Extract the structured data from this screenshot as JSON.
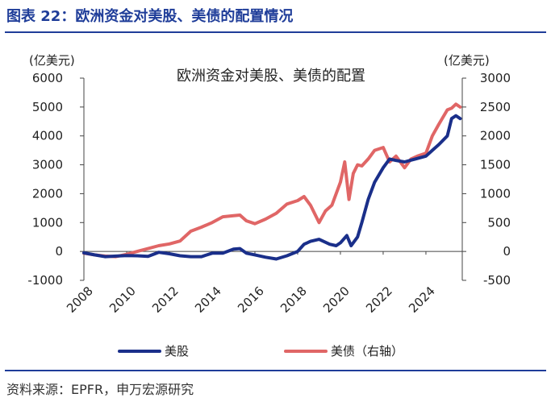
{
  "figure": {
    "title": "图表 22：欧洲资金对美股、美债的配置情况",
    "source": "资料来源：EPFR，申万宏源研究"
  },
  "chart_data": {
    "type": "line",
    "title": "欧洲资金对美股、美债的配置",
    "left_axis": {
      "unit_label": "(亿美元)",
      "ylim": [
        -1000,
        6000
      ],
      "ticks": [
        "-1000",
        "0",
        "1000",
        "2000",
        "3000",
        "4000",
        "5000",
        "6000"
      ]
    },
    "right_axis": {
      "unit_label": "(亿美元)",
      "ylim": [
        -500,
        3000
      ],
      "ticks": [
        "-500",
        "0",
        "500",
        "1000",
        "1500",
        "2000",
        "2500",
        "3000"
      ]
    },
    "x_axis": {
      "xlim": [
        2008,
        2025.7
      ],
      "ticks": [
        "2008",
        "2010",
        "2012",
        "2014",
        "2016",
        "2018",
        "2020",
        "2022",
        "2024"
      ]
    },
    "legend_position": "bottom",
    "colors": {
      "equity": "#1a2f8a",
      "bond": "#e06666",
      "axis": "#444444",
      "title": "#1f3d99"
    },
    "series": [
      {
        "name": "美股",
        "axis": "left",
        "x": [
          2008.0,
          2008.5,
          2009.0,
          2009.5,
          2010.0,
          2010.5,
          2011.0,
          2011.5,
          2012.0,
          2012.5,
          2013.0,
          2013.5,
          2014.0,
          2014.5,
          2015.0,
          2015.3,
          2015.6,
          2016.0,
          2016.5,
          2017.0,
          2017.5,
          2018.0,
          2018.3,
          2018.6,
          2019.0,
          2019.5,
          2019.8,
          2020.0,
          2020.3,
          2020.5,
          2020.8,
          2021.0,
          2021.3,
          2021.6,
          2022.0,
          2022.3,
          2022.6,
          2023.0,
          2023.5,
          2024.0,
          2024.3,
          2024.6,
          2025.0,
          2025.2,
          2025.4,
          2025.6
        ],
        "values": [
          -50,
          -120,
          -180,
          -160,
          -140,
          -150,
          -170,
          -30,
          -80,
          -150,
          -180,
          -180,
          -60,
          -60,
          80,
          100,
          -60,
          -120,
          -200,
          -260,
          -150,
          0,
          250,
          350,
          420,
          250,
          200,
          300,
          550,
          200,
          500,
          1000,
          1800,
          2400,
          2900,
          3200,
          3150,
          3100,
          3200,
          3300,
          3500,
          3700,
          4000,
          4600,
          4700,
          4600
        ]
      },
      {
        "name": "美债（右轴）",
        "axis": "right",
        "x": [
          2008.0,
          2008.5,
          2009.0,
          2009.5,
          2010.0,
          2010.5,
          2011.0,
          2011.5,
          2012.0,
          2012.5,
          2013.0,
          2013.5,
          2014.0,
          2014.5,
          2015.0,
          2015.3,
          2015.6,
          2016.0,
          2016.5,
          2017.0,
          2017.5,
          2018.0,
          2018.3,
          2018.6,
          2019.0,
          2019.3,
          2019.6,
          2020.0,
          2020.2,
          2020.4,
          2020.6,
          2020.8,
          2021.0,
          2021.3,
          2021.6,
          2022.0,
          2022.3,
          2022.6,
          2023.0,
          2023.3,
          2023.6,
          2024.0,
          2024.3,
          2024.6,
          2025.0,
          2025.2,
          2025.4,
          2025.6
        ],
        "values": [
          -30,
          -60,
          -80,
          -90,
          -50,
          0,
          50,
          100,
          130,
          180,
          350,
          420,
          500,
          600,
          620,
          630,
          530,
          480,
          560,
          660,
          820,
          880,
          950,
          800,
          500,
          700,
          800,
          1200,
          1550,
          900,
          1350,
          1500,
          1480,
          1600,
          1750,
          1800,
          1550,
          1650,
          1450,
          1600,
          1650,
          1700,
          2000,
          2200,
          2450,
          2480,
          2550,
          2500
        ]
      }
    ]
  }
}
